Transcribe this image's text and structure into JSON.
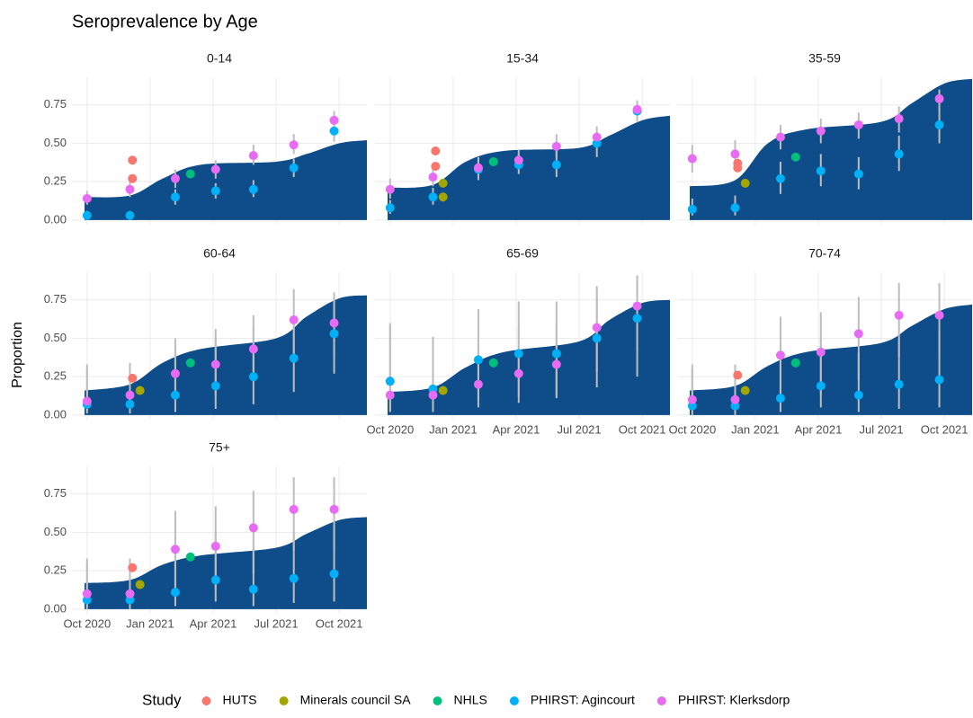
{
  "chart_data": {
    "type": "scatter",
    "title": "Seroprevalence by Age",
    "ylabel": "Proportion",
    "legend_title": "Study",
    "area_color": "#0e4d8a",
    "error_color": "#bdbdbd",
    "grid": true,
    "legend_position": "bottom",
    "xlim": [
      2020.69,
      2021.86
    ],
    "xticks": [
      {
        "value": 2020.75,
        "label": "Oct 2020"
      },
      {
        "value": 2021.0,
        "label": "Jan 2021"
      },
      {
        "value": 2021.25,
        "label": "Apr 2021"
      },
      {
        "value": 2021.5,
        "label": "Jul 2021"
      },
      {
        "value": 2021.75,
        "label": "Oct 2021"
      }
    ],
    "ylim": [
      -0.03,
      0.93
    ],
    "yticks": [
      {
        "value": 0,
        "label": "0.00"
      },
      0.25,
      {
        "value": 0.5,
        "label": "0.50"
      },
      0.75
    ],
    "studies": [
      {
        "name": "HUTS",
        "color": "#F8766D"
      },
      {
        "name": "Minerals council SA",
        "color": "#A3A500"
      },
      {
        "name": "NHLS",
        "color": "#00BF7D"
      },
      {
        "name": "PHIRST: Agincourt",
        "color": "#00B0F6"
      },
      {
        "name": "PHIRST: Klerksdorp",
        "color": "#E76BF3"
      }
    ],
    "facets": [
      {
        "title": "0-14",
        "area": {
          "x": [
            2020.74,
            2020.92,
            2021.05,
            2021.2,
            2021.5,
            2021.62,
            2021.75,
            2021.86
          ],
          "y": [
            0.15,
            0.16,
            0.27,
            0.36,
            0.38,
            0.43,
            0.5,
            0.52
          ]
        },
        "series": [
          {
            "x": [
              2020.93,
              2020.93
            ],
            "values": [
              0.27,
              0.39
            ]
          },
          {
            "x": [],
            "values": []
          },
          {
            "x": [
              2021.16
            ],
            "values": [
              0.3
            ]
          },
          {
            "x": [
              2020.75,
              2020.92,
              2021.1,
              2021.26,
              2021.41,
              2021.57,
              2021.73
            ],
            "values": [
              0.03,
              0.03,
              0.15,
              0.19,
              0.2,
              0.34,
              0.58
            ],
            "lower": [
              0.01,
              0.01,
              0.1,
              0.14,
              0.15,
              0.28,
              0.51
            ],
            "upper": [
              0.06,
              0.06,
              0.2,
              0.24,
              0.26,
              0.4,
              0.64
            ]
          },
          {
            "x": [
              2020.75,
              2020.92,
              2021.1,
              2021.26,
              2021.41,
              2021.57,
              2021.73
            ],
            "values": [
              0.14,
              0.2,
              0.27,
              0.33,
              0.42,
              0.49,
              0.65
            ],
            "lower": [
              0.1,
              0.15,
              0.21,
              0.27,
              0.36,
              0.43,
              0.59
            ],
            "upper": [
              0.19,
              0.25,
              0.33,
              0.39,
              0.49,
              0.56,
              0.71
            ]
          }
        ]
      },
      {
        "title": "15-34",
        "area": {
          "x": [
            2020.74,
            2020.92,
            2021.05,
            2021.2,
            2021.5,
            2021.62,
            2021.75,
            2021.86
          ],
          "y": [
            0.21,
            0.23,
            0.38,
            0.45,
            0.47,
            0.55,
            0.65,
            0.68
          ]
        },
        "series": [
          {
            "x": [
              2020.93,
              2020.93
            ],
            "values": [
              0.35,
              0.45
            ]
          },
          {
            "x": [
              2020.96,
              2020.96
            ],
            "values": [
              0.24,
              0.15
            ]
          },
          {
            "x": [
              2021.16
            ],
            "values": [
              0.38
            ]
          },
          {
            "x": [
              2020.75,
              2020.92,
              2021.1,
              2021.26,
              2021.41,
              2021.57,
              2021.73
            ],
            "values": [
              0.08,
              0.15,
              0.33,
              0.36,
              0.36,
              0.5,
              0.71
            ],
            "lower": [
              0.04,
              0.1,
              0.26,
              0.3,
              0.28,
              0.41,
              0.64
            ],
            "upper": [
              0.13,
              0.21,
              0.4,
              0.43,
              0.45,
              0.58,
              0.77
            ]
          },
          {
            "x": [
              2020.75,
              2020.92,
              2021.1,
              2021.26,
              2021.41,
              2021.57,
              2021.73
            ],
            "values": [
              0.2,
              0.28,
              0.34,
              0.39,
              0.48,
              0.54,
              0.72
            ],
            "lower": [
              0.14,
              0.22,
              0.28,
              0.33,
              0.41,
              0.47,
              0.66
            ],
            "upper": [
              0.27,
              0.35,
              0.41,
              0.46,
              0.56,
              0.61,
              0.78
            ]
          }
        ]
      },
      {
        "title": "35-59",
        "area": {
          "x": [
            2020.74,
            2020.92,
            2021.05,
            2021.2,
            2021.5,
            2021.62,
            2021.75,
            2021.86
          ],
          "y": [
            0.22,
            0.26,
            0.5,
            0.59,
            0.64,
            0.76,
            0.89,
            0.92
          ]
        },
        "series": [
          {
            "x": [
              2020.93,
              2020.93
            ],
            "values": [
              0.34,
              0.37
            ]
          },
          {
            "x": [
              2020.96
            ],
            "values": [
              0.24
            ]
          },
          {
            "x": [
              2021.16
            ],
            "values": [
              0.41
            ]
          },
          {
            "x": [
              2020.75,
              2020.92,
              2021.1,
              2021.26,
              2021.41,
              2021.57,
              2021.73
            ],
            "values": [
              0.07,
              0.08,
              0.27,
              0.32,
              0.3,
              0.43,
              0.62
            ],
            "lower": [
              0.03,
              0.03,
              0.17,
              0.22,
              0.2,
              0.32,
              0.5
            ],
            "upper": [
              0.14,
              0.16,
              0.38,
              0.43,
              0.41,
              0.55,
              0.73
            ]
          },
          {
            "x": [
              2020.75,
              2020.92,
              2021.1,
              2021.26,
              2021.41,
              2021.57,
              2021.73
            ],
            "values": [
              0.4,
              0.43,
              0.54,
              0.58,
              0.62,
              0.66,
              0.79
            ],
            "lower": [
              0.31,
              0.35,
              0.46,
              0.5,
              0.53,
              0.57,
              0.71
            ],
            "upper": [
              0.49,
              0.52,
              0.62,
              0.66,
              0.7,
              0.74,
              0.85
            ]
          }
        ]
      },
      {
        "title": "60-64",
        "area": {
          "x": [
            2020.74,
            2020.92,
            2021.05,
            2021.2,
            2021.5,
            2021.62,
            2021.75,
            2021.86
          ],
          "y": [
            0.16,
            0.2,
            0.34,
            0.43,
            0.5,
            0.64,
            0.76,
            0.78
          ]
        },
        "series": [
          {
            "x": [
              2020.93
            ],
            "values": [
              0.24
            ]
          },
          {
            "x": [
              2020.96
            ],
            "values": [
              0.16
            ]
          },
          {
            "x": [
              2021.16
            ],
            "values": [
              0.34
            ]
          },
          {
            "x": [
              2020.75,
              2020.92,
              2021.1,
              2021.26,
              2021.41,
              2021.57,
              2021.73
            ],
            "values": [
              0.07,
              0.07,
              0.13,
              0.19,
              0.25,
              0.37,
              0.53
            ],
            "lower": [
              0.01,
              0.01,
              0.02,
              0.04,
              0.07,
              0.15,
              0.27
            ],
            "upper": [
              0.33,
              0.3,
              0.45,
              0.5,
              0.57,
              0.62,
              0.75
            ]
          },
          {
            "x": [
              2020.75,
              2020.92,
              2021.1,
              2021.26,
              2021.41,
              2021.57,
              2021.73
            ],
            "values": [
              0.09,
              0.13,
              0.27,
              0.33,
              0.43,
              0.62,
              0.6
            ],
            "lower": [
              0.02,
              0.03,
              0.1,
              0.13,
              0.22,
              0.4,
              0.38
            ],
            "upper": [
              0.3,
              0.34,
              0.5,
              0.56,
              0.65,
              0.82,
              0.8
            ]
          }
        ]
      },
      {
        "title": "65-69",
        "area": {
          "x": [
            2020.74,
            2020.92,
            2021.05,
            2021.2,
            2021.5,
            2021.62,
            2021.75,
            2021.86
          ],
          "y": [
            0.15,
            0.18,
            0.31,
            0.41,
            0.48,
            0.62,
            0.73,
            0.75
          ]
        },
        "series": [
          {
            "x": [],
            "values": []
          },
          {
            "x": [
              2020.96
            ],
            "values": [
              0.16
            ]
          },
          {
            "x": [
              2021.16
            ],
            "values": [
              0.34
            ]
          },
          {
            "x": [
              2020.75,
              2020.92,
              2021.1,
              2021.26,
              2021.41,
              2021.57,
              2021.73
            ],
            "values": [
              0.22,
              0.17,
              0.36,
              0.4,
              0.4,
              0.5,
              0.63
            ],
            "lower": [
              0.03,
              0.02,
              0.09,
              0.12,
              0.11,
              0.18,
              0.25
            ],
            "upper": [
              0.58,
              0.51,
              0.69,
              0.74,
              0.74,
              0.82,
              0.89
            ]
          },
          {
            "x": [
              2020.75,
              2020.92,
              2021.1,
              2021.26,
              2021.41,
              2021.57,
              2021.73
            ],
            "values": [
              0.13,
              0.13,
              0.2,
              0.27,
              0.33,
              0.57,
              0.71
            ],
            "lower": [
              0.02,
              0.02,
              0.05,
              0.08,
              0.12,
              0.28,
              0.42
            ],
            "upper": [
              0.6,
              0.5,
              0.5,
              0.57,
              0.6,
              0.84,
              0.91
            ]
          }
        ]
      },
      {
        "title": "70-74",
        "area": {
          "x": [
            2020.74,
            2020.92,
            2021.05,
            2021.2,
            2021.5,
            2021.62,
            2021.75,
            2021.86
          ],
          "y": [
            0.16,
            0.19,
            0.32,
            0.41,
            0.47,
            0.58,
            0.69,
            0.72
          ]
        },
        "series": [
          {
            "x": [
              2020.93
            ],
            "values": [
              0.26
            ]
          },
          {
            "x": [
              2020.96
            ],
            "values": [
              0.16
            ]
          },
          {
            "x": [
              2021.16
            ],
            "values": [
              0.34
            ]
          },
          {
            "x": [
              2020.75,
              2020.92,
              2021.1,
              2021.26,
              2021.41,
              2021.57,
              2021.73
            ],
            "values": [
              0.06,
              0.06,
              0.11,
              0.19,
              0.13,
              0.2,
              0.23
            ],
            "lower": [
              0.0,
              0.0,
              0.02,
              0.05,
              0.02,
              0.04,
              0.05
            ],
            "upper": [
              0.3,
              0.3,
              0.4,
              0.5,
              0.4,
              0.5,
              0.55
            ]
          },
          {
            "x": [
              2020.75,
              2020.92,
              2021.1,
              2021.26,
              2021.41,
              2021.57,
              2021.73
            ],
            "values": [
              0.1,
              0.1,
              0.39,
              0.41,
              0.53,
              0.65,
              0.65
            ],
            "lower": [
              0.01,
              0.01,
              0.12,
              0.13,
              0.23,
              0.38,
              0.38
            ],
            "upper": [
              0.33,
              0.33,
              0.64,
              0.67,
              0.77,
              0.86,
              0.86
            ]
          }
        ]
      },
      {
        "title": "75+",
        "area": {
          "x": [
            2020.74,
            2020.92,
            2021.05,
            2021.2,
            2021.5,
            2021.62,
            2021.75,
            2021.86
          ],
          "y": [
            0.17,
            0.19,
            0.29,
            0.35,
            0.4,
            0.49,
            0.58,
            0.6
          ]
        },
        "series": [
          {
            "x": [
              2020.93
            ],
            "values": [
              0.27
            ]
          },
          {
            "x": [
              2020.96
            ],
            "values": [
              0.16
            ]
          },
          {
            "x": [
              2021.16
            ],
            "values": [
              0.34
            ]
          },
          {
            "x": [
              2020.75,
              2020.92,
              2021.1,
              2021.26,
              2021.41,
              2021.57,
              2021.73
            ],
            "values": [
              0.06,
              0.06,
              0.11,
              0.19,
              0.13,
              0.2,
              0.23
            ],
            "lower": [
              0.0,
              0.0,
              0.02,
              0.05,
              0.02,
              0.04,
              0.05
            ],
            "upper": [
              0.3,
              0.3,
              0.4,
              0.5,
              0.4,
              0.5,
              0.55
            ]
          },
          {
            "x": [
              2020.75,
              2020.92,
              2021.1,
              2021.26,
              2021.41,
              2021.57,
              2021.73
            ],
            "values": [
              0.1,
              0.1,
              0.39,
              0.41,
              0.53,
              0.65,
              0.65
            ],
            "lower": [
              0.01,
              0.01,
              0.12,
              0.13,
              0.23,
              0.38,
              0.38
            ],
            "upper": [
              0.33,
              0.33,
              0.64,
              0.67,
              0.77,
              0.86,
              0.86
            ]
          }
        ]
      }
    ]
  }
}
